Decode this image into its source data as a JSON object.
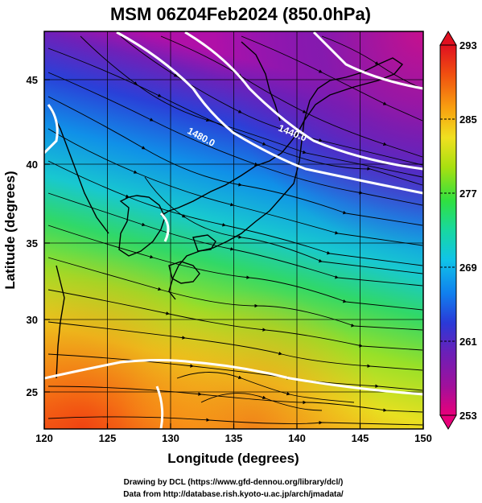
{
  "title": "MSM 06Z04Feb2024 (850.0hPa)",
  "xlabel": "Longitude (degrees)",
  "ylabel": "Latitude  (degrees)",
  "credit_line1": "Drawing by DCL (https://www.gfd-dennou.org/library/dcl/)",
  "credit_line2": "Data from http://database.rish.kyoto-u.ac.jp/arch/jmadata/",
  "map": {
    "lon_range": [
      120,
      150
    ],
    "lat_range": [
      22.4,
      47.6
    ],
    "lon_ticks": [
      120,
      125,
      130,
      135,
      140,
      145,
      150
    ],
    "lat_ticks": [
      25,
      30,
      35,
      40,
      45
    ],
    "lon_tick_labels": [
      "120",
      "125",
      "130",
      "135",
      "140",
      "145",
      "150"
    ],
    "lat_tick_labels": [
      "25",
      "30",
      "35",
      "40",
      "45"
    ]
  },
  "colorbar": {
    "min": 253,
    "max": 293,
    "tick_values": [
      293,
      285,
      277,
      269,
      261,
      253
    ],
    "tick_labels": [
      "293",
      "285",
      "277",
      "269",
      "261",
      "253"
    ],
    "colors": [
      "#e8007a",
      "#a0109c",
      "#6a20b8",
      "#2a3ad8",
      "#1080ee",
      "#10c4e8",
      "#18d8a0",
      "#30e040",
      "#a8e010",
      "#f0e020",
      "#f8a010",
      "#f05010",
      "#e01020"
    ]
  },
  "contours": [
    {
      "label": "1480.0"
    },
    {
      "label": "1440.0"
    }
  ]
}
